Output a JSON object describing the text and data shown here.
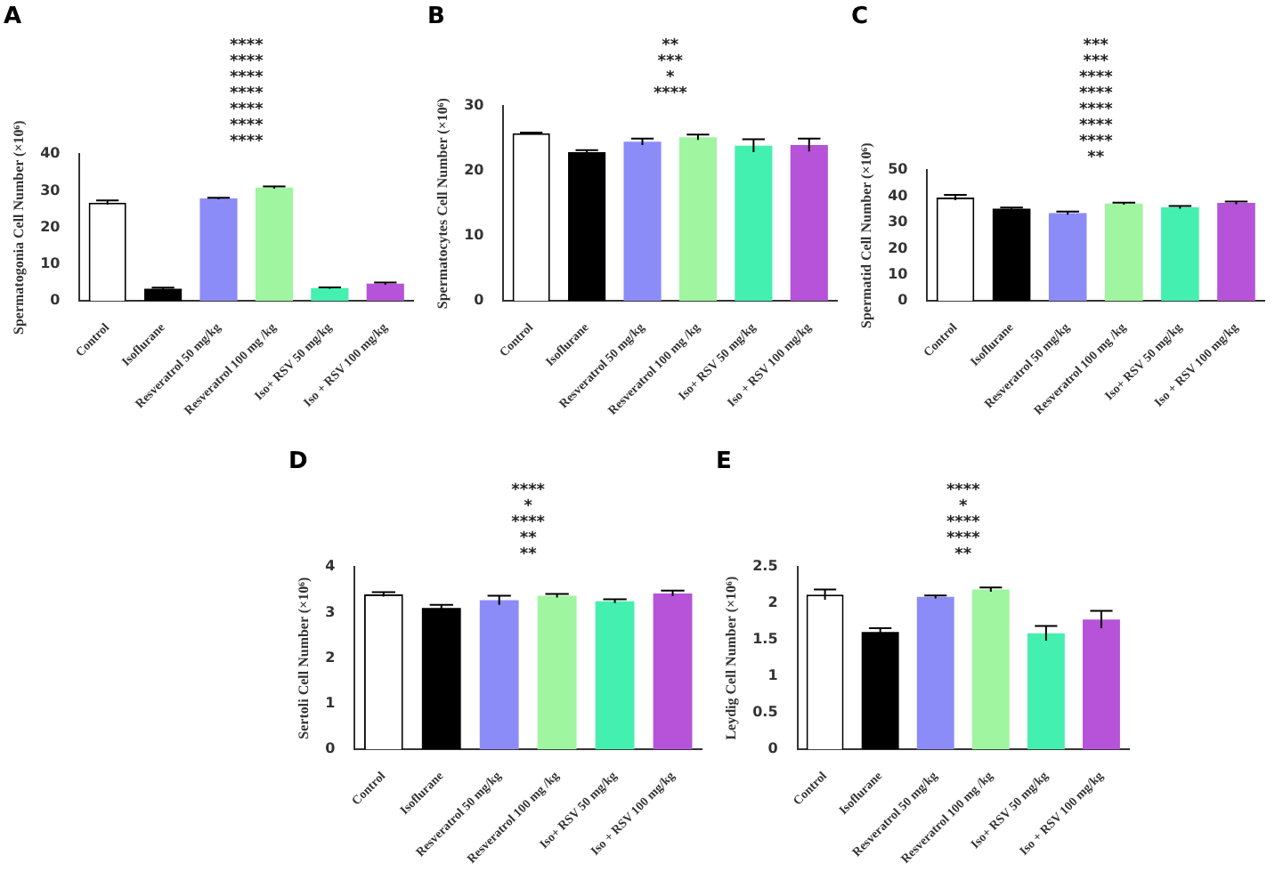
{
  "chart_data": [
    {
      "type": "bar",
      "title": "A",
      "ylabel": "Spermatogonia Cell Number (×10⁶)",
      "categories": [
        "Control",
        "Isoflurane",
        "Resveratrol 50 mg/kg",
        "Resveratrol 100 mg /kg",
        "Iso+ RSV 50 mg/kg",
        "Iso + RSV 100 mg/kg"
      ],
      "values": [
        26.8,
        3.3,
        27.9,
        30.9,
        3.5,
        4.7
      ],
      "errors": [
        0.6,
        0.3,
        0.2,
        0.3,
        0.2,
        0.3
      ],
      "colors": [
        "#ffffff",
        "#000000",
        "#8c8cf8",
        "#a0f5a0",
        "#44f0b0",
        "#b653d8"
      ],
      "ylim": [
        0,
        40
      ],
      "yticks": [
        0,
        10,
        20,
        30,
        40
      ],
      "grid": false,
      "legend": false,
      "annotations": [
        "****",
        "****",
        "****",
        "****",
        "****",
        "****",
        "****"
      ]
    },
    {
      "type": "bar",
      "title": "B",
      "ylabel": "Spermatocytes Cell Number (×10⁶)",
      "categories": [
        "Control",
        "Isoflurane",
        "Resveratrol 50 mg/kg",
        "Resveratrol 100 mg /kg",
        "Iso+ RSV 50 mg/kg",
        "Iso + RSV 100 mg/kg"
      ],
      "values": [
        25.8,
        22.9,
        24.5,
        25.2,
        23.9,
        24.0
      ],
      "errors": [
        0.1,
        0.3,
        0.5,
        0.4,
        1.0,
        1.0
      ],
      "colors": [
        "#ffffff",
        "#000000",
        "#8c8cf8",
        "#a0f5a0",
        "#44f0b0",
        "#b653d8"
      ],
      "ylim": [
        0,
        30
      ],
      "yticks": [
        0,
        10,
        20,
        30
      ],
      "grid": false,
      "legend": false,
      "annotations": [
        "**",
        "***",
        "*",
        "****"
      ]
    },
    {
      "type": "bar",
      "title": "C",
      "ylabel": "Spermatid Cell Number (×10⁶)",
      "categories": [
        "Control",
        "Isoflurane",
        "Resveratrol 50 mg/kg",
        "Resveratrol 100 mg /kg",
        "Iso+ RSV 50 mg/kg",
        "Iso + RSV 100 mg/kg"
      ],
      "values": [
        39.5,
        35.3,
        33.6,
        37.2,
        35.8,
        37.5
      ],
      "errors": [
        1.0,
        0.4,
        0.6,
        0.4,
        0.5,
        0.5
      ],
      "colors": [
        "#ffffff",
        "#000000",
        "#8c8cf8",
        "#a0f5a0",
        "#44f0b0",
        "#b653d8"
      ],
      "ylim": [
        0,
        50
      ],
      "yticks": [
        0,
        10,
        20,
        30,
        40,
        50
      ],
      "grid": false,
      "legend": false,
      "annotations": [
        "***",
        "***",
        "****",
        "****",
        "****",
        "****",
        "****",
        "**"
      ]
    },
    {
      "type": "bar",
      "title": "D",
      "ylabel": "Sertoli Cell Number (×10⁶)",
      "categories": [
        "Control",
        "Isoflurane",
        "Resveratrol 50 mg/kg",
        "Resveratrol 100 mg /kg",
        "Iso+ RSV 50 mg/kg",
        "Iso + RSV 100 mg/kg"
      ],
      "values": [
        3.4,
        3.1,
        3.27,
        3.37,
        3.25,
        3.42
      ],
      "errors": [
        0.05,
        0.07,
        0.1,
        0.04,
        0.04,
        0.06
      ],
      "colors": [
        "#ffffff",
        "#000000",
        "#8c8cf8",
        "#a0f5a0",
        "#44f0b0",
        "#b653d8"
      ],
      "ylim": [
        0,
        4
      ],
      "yticks": [
        0,
        1,
        2,
        3,
        4
      ],
      "grid": false,
      "legend": false,
      "annotations": [
        "****",
        "*",
        "****",
        "**",
        "**"
      ]
    },
    {
      "type": "bar",
      "title": "E",
      "ylabel": "Leydig Cell Number (×10⁶)",
      "categories": [
        "Control",
        "Isoflurane",
        "Resveratrol 50 mg/kg",
        "Resveratrol 100 mg /kg",
        "Iso+ RSV 50 mg/kg",
        "Iso + RSV 100 mg/kg"
      ],
      "values": [
        2.12,
        1.61,
        2.09,
        2.19,
        1.59,
        1.78
      ],
      "errors": [
        0.07,
        0.05,
        0.02,
        0.03,
        0.1,
        0.12
      ],
      "colors": [
        "#ffffff",
        "#000000",
        "#8c8cf8",
        "#a0f5a0",
        "#44f0b0",
        "#b653d8"
      ],
      "ylim": [
        0,
        2.5
      ],
      "yticks": [
        0,
        0.5,
        1,
        1.5,
        2,
        2.5
      ],
      "grid": false,
      "legend": false,
      "annotations": [
        "****",
        "*",
        "****",
        "****",
        "**"
      ]
    }
  ]
}
